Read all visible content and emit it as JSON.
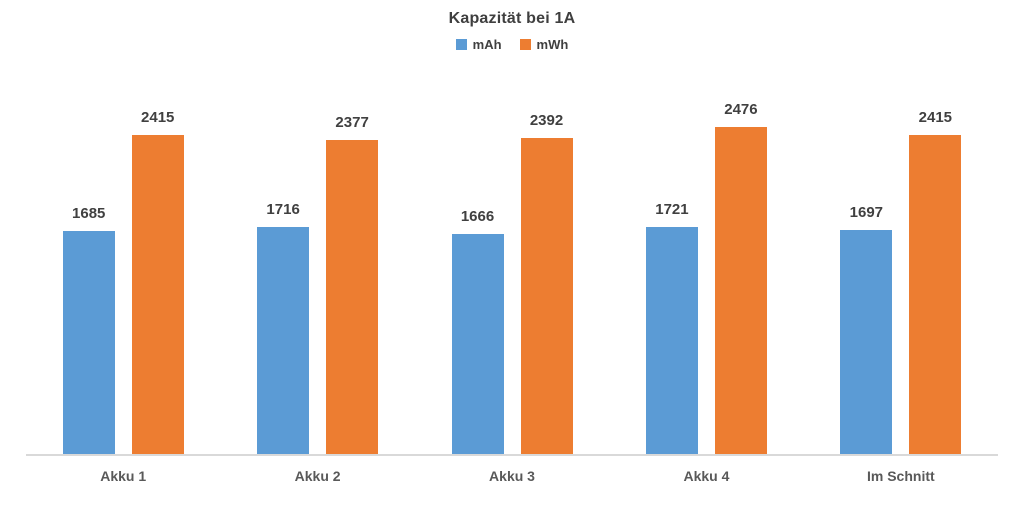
{
  "chart_data": {
    "type": "bar",
    "title": "Kapazität bei 1A",
    "categories": [
      "Akku 1",
      "Akku 2",
      "Akku 3",
      "Akku 4",
      "Im Schnitt"
    ],
    "series": [
      {
        "name": "mAh",
        "color": "#5b9bd5",
        "values": [
          1685,
          1716,
          1666,
          1721,
          1697
        ]
      },
      {
        "name": "mWh",
        "color": "#ed7d31",
        "values": [
          2415,
          2377,
          2392,
          2476,
          2415
        ]
      }
    ],
    "ylim": [
      0,
      2800
    ],
    "grid": false,
    "legend_position": "top",
    "axis_line_color": "#d9d9d9",
    "data_labels": true
  }
}
